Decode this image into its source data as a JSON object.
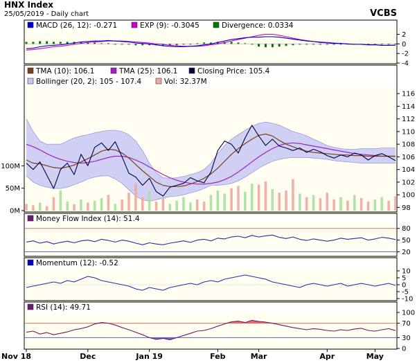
{
  "header": {
    "title": "HNX Index",
    "subtitle": "25/05/2019 - Daily chart",
    "brand": "VCBS"
  },
  "colors": {
    "panel_bg": "#fffef0",
    "macd": "#0000cc",
    "exp": "#cc00cc",
    "divergence": "#007700",
    "tma10": "#7a3f18",
    "tma25": "#a020c0",
    "close": "#000040",
    "bollinger_fill": "#c8c8f4",
    "bollinger_line": "#9a9ae0",
    "vol_fill": "#f0a8a0",
    "vol_green": "#a8e0a0",
    "mfi": "#2030a0",
    "momentum": "#2030b0",
    "rsi": "#6a1a6a",
    "rsi_fill": "#e05050",
    "rsi_fill_low": "#6040e0",
    "level_red": "#e07070",
    "level_blue": "#5060d0"
  },
  "chart_data": [
    {
      "type": "line",
      "name": "macd-panel",
      "legend": [
        {
          "label": "MACD (26, 12): -0.271",
          "color": "#0000cc"
        },
        {
          "label": "EXP (9): -0.3045",
          "color": "#cc00cc"
        },
        {
          "label": "Divergence: 0.0334",
          "color": "#007700"
        }
      ],
      "y_ticks": [
        "2",
        "0",
        "-2",
        "-4"
      ],
      "ylim": [
        -4,
        2.8
      ],
      "series": [
        {
          "name": "MACD",
          "values": [
            -1.0,
            -0.9,
            -0.6,
            -0.4,
            -0.3,
            -0.2,
            0.0,
            0.2,
            0.4,
            0.5,
            0.6,
            0.6,
            0.7,
            0.6,
            0.5,
            0.4,
            0.2,
            0.1,
            0.0,
            -0.2,
            -0.4,
            -0.5,
            -0.6,
            -0.6,
            -0.5,
            -0.4,
            -0.2,
            0.0,
            0.3,
            0.6,
            0.9,
            1.1,
            1.3,
            1.4,
            1.4,
            1.5,
            1.5,
            1.4,
            1.2,
            1.0,
            0.8,
            0.6,
            0.5,
            0.3,
            0.2,
            0.1,
            0.1,
            0.0,
            -0.1,
            -0.1,
            -0.2,
            -0.2,
            -0.3,
            -0.3,
            -0.27
          ]
        },
        {
          "name": "EXP",
          "values": [
            -1.3,
            -1.2,
            -1.0,
            -0.8,
            -0.6,
            -0.5,
            -0.3,
            -0.1,
            0.1,
            0.3,
            0.4,
            0.5,
            0.6,
            0.6,
            0.6,
            0.5,
            0.4,
            0.3,
            0.2,
            0.0,
            -0.1,
            -0.3,
            -0.4,
            -0.5,
            -0.5,
            -0.5,
            -0.4,
            -0.2,
            0.0,
            0.3,
            0.6,
            0.9,
            1.2,
            1.5,
            1.8,
            2.0,
            2.0,
            1.8,
            1.5,
            1.2,
            0.9,
            0.7,
            0.5,
            0.4,
            0.3,
            0.2,
            0.1,
            0.0,
            -0.1,
            -0.1,
            -0.2,
            -0.2,
            -0.3,
            -0.3,
            -0.3
          ]
        }
      ]
    },
    {
      "type": "line",
      "name": "price-panel",
      "legend": [
        {
          "label": "TMA (10): 106.1",
          "color": "#7a3f18"
        },
        {
          "label": "TMA (25): 106.1",
          "color": "#a020c0"
        },
        {
          "label": "Closing Price: 105.4",
          "color": "#000040"
        },
        {
          "label": "Bollinger (20, 2): 105 - 107.4",
          "color": "#c8c8f4"
        },
        {
          "label": "Vol: 32.37M",
          "color": "#f0a8a0"
        }
      ],
      "y_ticks": [
        "116",
        "114",
        "112",
        "110",
        "108",
        "106",
        "104",
        "102",
        "100",
        "98"
      ],
      "ylim": [
        97.5,
        117
      ],
      "vol_ticks": [
        "100M",
        "50M",
        "0M"
      ],
      "vol_ylim": [
        0,
        130
      ],
      "series": [
        {
          "name": "Closing Price",
          "values": [
            105.0,
            104.0,
            105.2,
            103.1,
            101.0,
            104.0,
            105.0,
            103.2,
            106.4,
            104.6,
            107.5,
            108.2,
            107.0,
            108.4,
            106.0,
            103.4,
            102.8,
            101.5,
            102.6,
            100.5,
            99.8,
            101.2,
            101.5,
            101.8,
            102.7,
            102.2,
            101.9,
            103.6,
            107.0,
            108.5,
            108.0,
            106.6,
            109.0,
            111.0,
            109.3,
            107.8,
            108.8,
            107.7,
            107.4,
            107.0,
            107.4,
            106.7,
            107.2,
            106.8,
            106.2,
            105.8,
            106.3,
            106.0,
            106.6,
            106.3,
            105.5,
            106.2,
            106.5,
            106.0,
            105.4
          ]
        },
        {
          "name": "TMA (10)",
          "values": [
            105.5,
            105.0,
            104.9,
            104.6,
            104.3,
            104.2,
            104.4,
            104.7,
            105.2,
            105.7,
            106.3,
            106.9,
            107.2,
            107.1,
            106.6,
            105.8,
            104.8,
            103.8,
            102.9,
            102.0,
            101.5,
            101.3,
            101.3,
            101.4,
            101.7,
            102.1,
            102.6,
            103.3,
            104.2,
            105.3,
            106.4,
            107.3,
            108.1,
            108.8,
            109.4,
            109.6,
            109.3,
            108.6,
            108.0,
            107.6,
            107.2,
            106.9,
            106.7,
            106.6,
            106.5,
            106.4,
            106.3,
            106.3,
            106.2,
            106.2,
            106.1,
            106.1,
            106.1,
            106.1,
            106.1
          ]
        },
        {
          "name": "TMA (25)",
          "values": [
            108.0,
            107.6,
            107.1,
            106.5,
            106.0,
            105.6,
            105.3,
            105.1,
            105.0,
            105.1,
            105.3,
            105.6,
            105.9,
            106.1,
            106.1,
            105.9,
            105.5,
            105.0,
            104.4,
            103.8,
            103.2,
            102.7,
            102.3,
            102.0,
            101.8,
            101.7,
            101.7,
            101.8,
            102.0,
            102.4,
            102.9,
            103.6,
            104.4,
            105.2,
            106.0,
            106.7,
            107.3,
            107.8,
            108.1,
            108.2,
            108.1,
            107.9,
            107.7,
            107.5,
            107.3,
            107.1,
            106.9,
            106.7,
            106.5,
            106.4,
            106.3,
            106.2,
            106.1,
            106.1,
            106.1
          ]
        },
        {
          "name": "Bollinger Upper",
          "values": [
            112.0,
            110.0,
            108.5,
            108.0,
            108.0,
            108.0,
            108.5,
            109.0,
            109.3,
            109.5,
            109.8,
            110.0,
            110.2,
            110.2,
            110.0,
            109.5,
            108.5,
            107.0,
            105.0,
            103.5,
            102.7,
            102.6,
            102.7,
            102.9,
            103.2,
            103.5,
            104.0,
            105.0,
            106.5,
            107.8,
            108.8,
            109.5,
            110.2,
            110.8,
            111.3,
            111.5,
            111.3,
            111.0,
            110.5,
            110.0,
            109.7,
            109.3,
            108.8,
            108.3,
            107.8,
            107.5,
            107.3,
            107.2,
            107.2,
            107.3,
            107.3,
            107.3,
            107.4,
            107.4,
            107.4
          ]
        },
        {
          "name": "Bollinger Lower",
          "values": [
            103.0,
            102.0,
            101.5,
            101.2,
            101.0,
            101.0,
            101.2,
            101.6,
            102.0,
            102.5,
            102.8,
            103.0,
            103.0,
            102.5,
            101.8,
            100.8,
            99.8,
            99.2,
            99.0,
            99.2,
            99.5,
            99.7,
            99.8,
            100.0,
            100.3,
            100.6,
            101.0,
            101.5,
            101.5,
            101.6,
            101.8,
            102.2,
            102.8,
            103.5,
            104.2,
            104.8,
            105.3,
            105.6,
            105.8,
            105.9,
            105.9,
            105.9,
            105.8,
            105.7,
            105.6,
            105.4,
            105.3,
            105.2,
            105.1,
            105.0,
            105.0,
            105.0,
            105.0,
            105.0,
            105.0
          ]
        },
        {
          "name": "Vol",
          "values": [
            15,
            12,
            18,
            10,
            30,
            45,
            20,
            14,
            25,
            18,
            22,
            28,
            35,
            15,
            25,
            40,
            60,
            30,
            45,
            20,
            28,
            15,
            22,
            30,
            18,
            25,
            20,
            35,
            45,
            38,
            50,
            55,
            42,
            60,
            58,
            65,
            48,
            40,
            45,
            70,
            38,
            30,
            35,
            28,
            40,
            25,
            30,
            22,
            35,
            28,
            20,
            25,
            30,
            22,
            32
          ]
        }
      ]
    },
    {
      "type": "line",
      "name": "mfi-panel",
      "legend": [
        {
          "label": "Money Flow Index (14): 51.4",
          "color": "#6a1a6a"
        }
      ],
      "y_ticks": [
        "80",
        "50",
        "20"
      ],
      "ylim": [
        10,
        92
      ],
      "levels": [
        80,
        20
      ],
      "series": [
        {
          "name": "Money Flow Index",
          "values": [
            45,
            48,
            42,
            46,
            40,
            44,
            47,
            43,
            48,
            50,
            46,
            52,
            49,
            45,
            50,
            47,
            42,
            38,
            43,
            40,
            38,
            42,
            45,
            48,
            44,
            50,
            52,
            48,
            55,
            53,
            58,
            60,
            56,
            62,
            58,
            61,
            63,
            57,
            54,
            58,
            52,
            49,
            53,
            50,
            47,
            50,
            55,
            52,
            54,
            56,
            50,
            53,
            57,
            55,
            51.4
          ]
        }
      ]
    },
    {
      "type": "line",
      "name": "momentum-panel",
      "legend": [
        {
          "label": "Momentum (12): -0.52",
          "color": "#0000cc"
        }
      ],
      "y_ticks": [
        "10",
        "5",
        "0",
        "-5",
        "-10"
      ],
      "ylim": [
        -11,
        12
      ],
      "series": [
        {
          "name": "Momentum",
          "values": [
            -2,
            -1,
            0,
            1,
            2,
            1,
            3,
            2,
            4,
            6,
            5,
            3,
            2,
            1,
            0,
            -1,
            -3,
            -4,
            -2,
            -3,
            -4,
            -2,
            -1,
            0,
            1,
            0,
            2,
            3,
            2,
            4,
            5,
            6,
            7,
            6,
            5,
            4,
            2,
            1,
            0,
            -1,
            -2,
            0,
            1,
            0,
            -1,
            0,
            1,
            -1,
            0,
            1,
            0,
            -1,
            0,
            1,
            -0.52
          ]
        }
      ]
    },
    {
      "type": "line",
      "name": "rsi-panel",
      "legend": [
        {
          "label": "RSI (14): 49.71",
          "color": "#6a1a6a"
        }
      ],
      "y_ticks": [
        "100",
        "70",
        "30",
        "0"
      ],
      "ylim": [
        0,
        100
      ],
      "levels": [
        70,
        30
      ],
      "series": [
        {
          "name": "RSI",
          "values": [
            45,
            48,
            40,
            44,
            38,
            42,
            46,
            52,
            55,
            60,
            68,
            72,
            70,
            65,
            58,
            52,
            45,
            38,
            30,
            25,
            28,
            24,
            30,
            36,
            42,
            48,
            50,
            55,
            62,
            68,
            74,
            76,
            72,
            78,
            75,
            73,
            70,
            66,
            62,
            58,
            55,
            52,
            55,
            53,
            50,
            48,
            52,
            50,
            54,
            56,
            50,
            48,
            52,
            55,
            49.71
          ]
        }
      ]
    }
  ],
  "x_axis": {
    "labels": [
      "Nov 18",
      "Dec",
      "Jan 19",
      "Feb",
      "Mar",
      "Apr",
      "May"
    ],
    "label_index": [
      0,
      9,
      18,
      28,
      34,
      44,
      51
    ]
  }
}
